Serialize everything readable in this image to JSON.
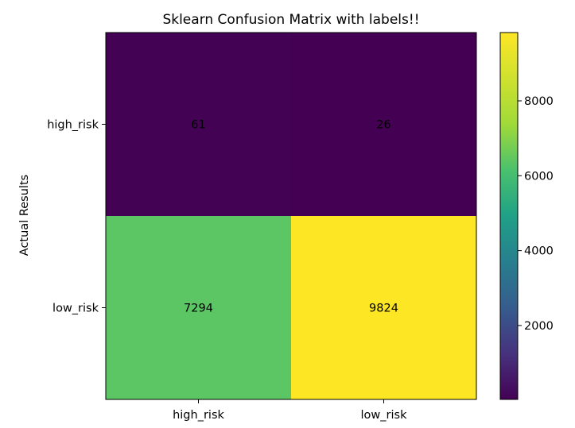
{
  "chart_data": {
    "type": "heatmap",
    "title": "Sklearn Confusion Matrix with labels!!",
    "ylabel": "Actual Results",
    "xlabel": "",
    "row_labels": [
      "high_risk",
      "low_risk"
    ],
    "col_labels": [
      "high_risk",
      "low_risk"
    ],
    "values": [
      [
        61,
        26
      ],
      [
        7294,
        9824
      ]
    ],
    "colormap": "viridis",
    "colorbar": {
      "min": 26,
      "max": 9824,
      "ticks": [
        2000,
        4000,
        6000,
        8000
      ]
    },
    "colors": {
      "low": "#440154",
      "high": "#fde725"
    },
    "grid": false
  }
}
